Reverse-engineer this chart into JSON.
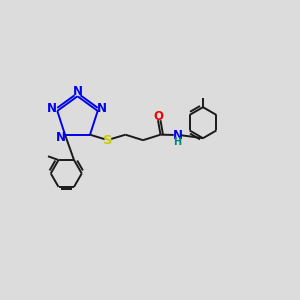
{
  "background_color": "#dcdcdc",
  "bond_color": "#1a1a1a",
  "N_color": "#0000ee",
  "O_color": "#ee0000",
  "S_color": "#cccc00",
  "NH_color": "#008080",
  "figsize": [
    3.0,
    3.0
  ],
  "dpi": 100,
  "xlim": [
    0,
    12
  ],
  "ylim": [
    0,
    12
  ]
}
